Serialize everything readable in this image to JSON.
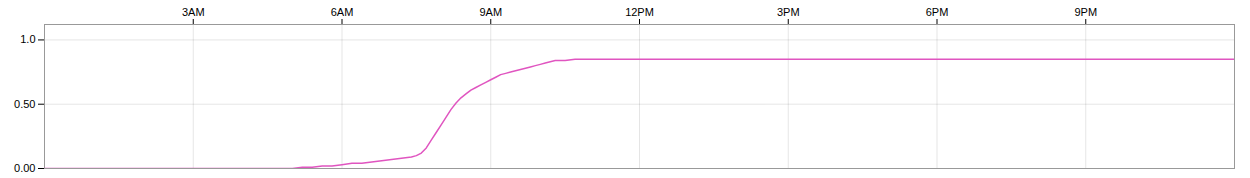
{
  "chart_data": {
    "type": "line",
    "x": [
      0.0,
      0.5,
      1.0,
      1.5,
      2.0,
      2.5,
      3.0,
      3.5,
      4.0,
      4.5,
      5.0,
      5.2,
      5.4,
      5.6,
      5.8,
      6.0,
      6.2,
      6.4,
      6.6,
      6.8,
      7.0,
      7.2,
      7.4,
      7.5,
      7.6,
      7.7,
      7.8,
      7.9,
      8.0,
      8.1,
      8.2,
      8.3,
      8.4,
      8.5,
      8.6,
      8.7,
      8.8,
      8.9,
      9.0,
      9.1,
      9.2,
      9.3,
      9.4,
      9.5,
      9.6,
      9.7,
      9.8,
      9.9,
      10.0,
      10.1,
      10.2,
      10.3,
      10.5,
      10.7,
      10.9,
      11.0,
      11.2,
      11.4,
      11.6,
      12.0,
      13.0,
      15.0,
      18.0,
      21.0,
      24.0
    ],
    "values": [
      0.0,
      0.0,
      0.0,
      0.0,
      0.0,
      0.0,
      0.0,
      0.0,
      0.0,
      0.0,
      0.0,
      0.01,
      0.01,
      0.02,
      0.02,
      0.03,
      0.04,
      0.04,
      0.05,
      0.06,
      0.07,
      0.08,
      0.09,
      0.1,
      0.12,
      0.16,
      0.22,
      0.28,
      0.34,
      0.4,
      0.46,
      0.51,
      0.55,
      0.58,
      0.61,
      0.63,
      0.65,
      0.67,
      0.69,
      0.71,
      0.73,
      0.74,
      0.75,
      0.76,
      0.77,
      0.78,
      0.79,
      0.8,
      0.81,
      0.82,
      0.83,
      0.84,
      0.84,
      0.85,
      0.85,
      0.85,
      0.85,
      0.85,
      0.85,
      0.85,
      0.85,
      0.85,
      0.85,
      0.85,
      0.85
    ],
    "color": "#e055c0",
    "xlim": [
      0,
      24
    ],
    "ylim": [
      0.0,
      1.12
    ],
    "xticks": [
      {
        "value": 3,
        "label": "3AM"
      },
      {
        "value": 6,
        "label": "6AM"
      },
      {
        "value": 9,
        "label": "9AM"
      },
      {
        "value": 12,
        "label": "12PM"
      },
      {
        "value": 15,
        "label": "3PM"
      },
      {
        "value": 18,
        "label": "6PM"
      },
      {
        "value": 21,
        "label": "9PM"
      }
    ],
    "yticks": [
      {
        "value": 0.0,
        "label": "0.00"
      },
      {
        "value": 0.5,
        "label": "0.50"
      },
      {
        "value": 1.0,
        "label": "1.0"
      }
    ],
    "grid": true
  }
}
